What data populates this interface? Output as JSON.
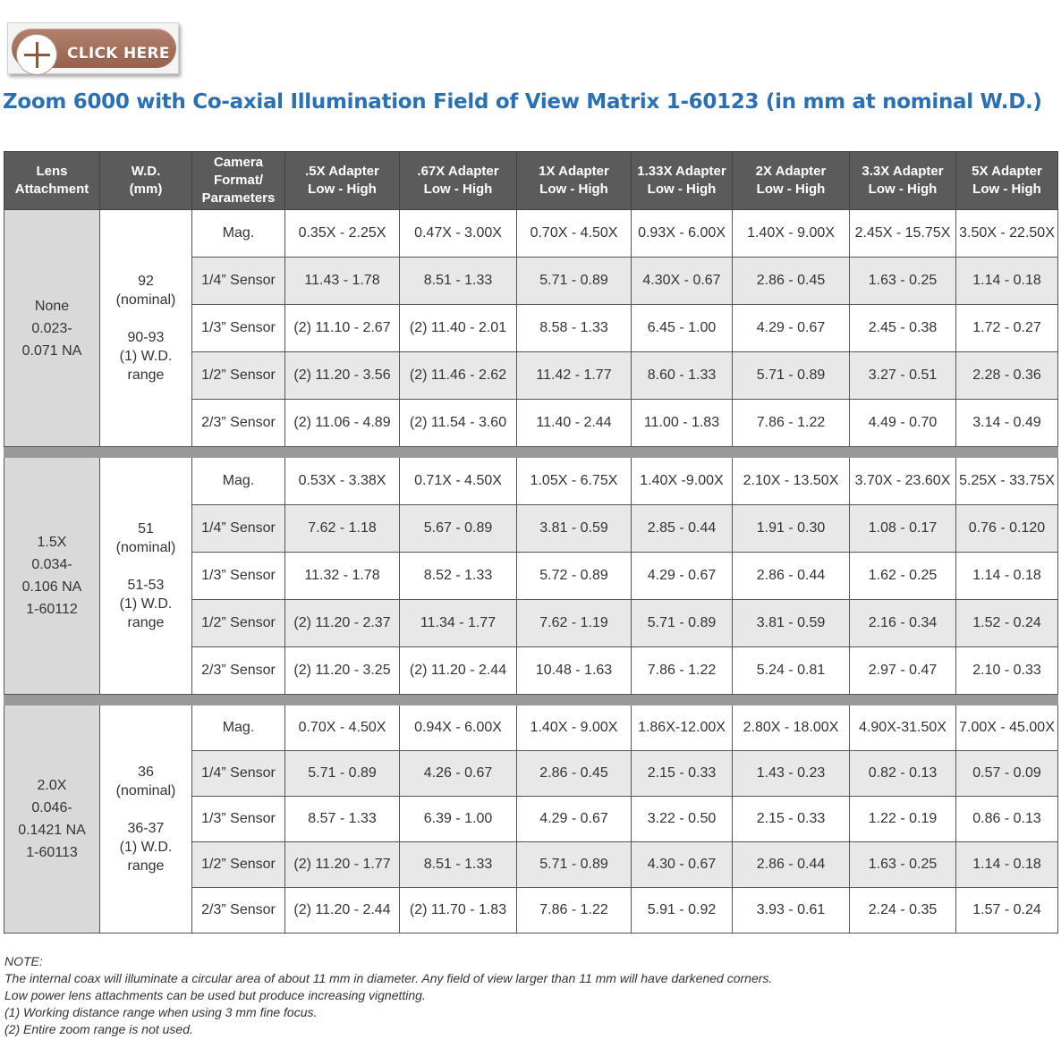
{
  "button": {
    "label": "CLICK HERE",
    "icon": "plus-icon",
    "color": "#a06c57"
  },
  "title": "Zoom 6000 with Co-axial Illumination Field of View Matrix 1-60123 (in mm at nominal W.D.)",
  "table": {
    "headers": {
      "lens": [
        "Lens",
        "Attachment"
      ],
      "wd": [
        "W.D.",
        "(mm)"
      ],
      "camera": [
        "Camera",
        "Format/",
        "Parameters"
      ],
      "adapters": [
        [
          ".5X Adapter",
          "Low - High"
        ],
        [
          ".67X Adapter",
          "Low - High"
        ],
        [
          "1X Adapter",
          "Low - High"
        ],
        [
          "1.33X Adapter",
          "Low - High"
        ],
        [
          "2X Adapter",
          "Low - High"
        ],
        [
          "3.3X Adapter",
          "Low - High"
        ],
        [
          "5X Adapter",
          "Low - High"
        ]
      ]
    },
    "groups": [
      {
        "lens": [
          "None",
          "0.023-",
          "0.071 NA"
        ],
        "wd": [
          "92",
          "(nominal)",
          "",
          "90-93",
          "(1) W.D.",
          "range"
        ],
        "rows": [
          {
            "param": "Mag.",
            "values": [
              "0.35X - 2.25X",
              "0.47X - 3.00X",
              "0.70X - 4.50X",
              "0.93X - 6.00X",
              "1.40X - 9.00X",
              "2.45X - 15.75X",
              "3.50X - 22.50X"
            ]
          },
          {
            "param": "1/4” Sensor",
            "values": [
              "11.43 - 1.78",
              "8.51 - 1.33",
              "5.71 - 0.89",
              "4.30X - 0.67",
              "2.86 - 0.45",
              "1.63 - 0.25",
              "1.14 - 0.18"
            ]
          },
          {
            "param": "1/3” Sensor",
            "values": [
              "(2) 11.10 - 2.67",
              "(2) 11.40 - 2.01",
              "8.58 - 1.33",
              "6.45 - 1.00",
              "4.29 - 0.67",
              "2.45 - 0.38",
              "1.72 - 0.27"
            ]
          },
          {
            "param": "1/2” Sensor",
            "values": [
              "(2) 11.20 - 3.56",
              "(2) 11.46 - 2.62",
              "11.42 - 1.77",
              "8.60 - 1.33",
              "5.71 - 0.89",
              "3.27 - 0.51",
              "2.28 - 0.36"
            ]
          },
          {
            "param": "2/3” Sensor",
            "values": [
              "(2) 11.06 - 4.89",
              "(2) 11.54 - 3.60",
              "11.40 - 2.44",
              "11.00 - 1.83",
              "7.86 - 1.22",
              "4.49 - 0.70",
              "3.14 - 0.49"
            ]
          }
        ]
      },
      {
        "lens": [
          "1.5X",
          "0.034-",
          "0.106 NA",
          "1-60112"
        ],
        "wd": [
          "51",
          "(nominal)",
          "",
          "51-53",
          "(1) W.D.",
          "range"
        ],
        "rows": [
          {
            "param": "Mag.",
            "values": [
              "0.53X - 3.38X",
              "0.71X - 4.50X",
              "1.05X - 6.75X",
              "1.40X -9.00X",
              "2.10X - 13.50X",
              "3.70X - 23.60X",
              "5.25X - 33.75X"
            ]
          },
          {
            "param": "1/4” Sensor",
            "values": [
              "7.62 - 1.18",
              "5.67 - 0.89",
              "3.81 - 0.59",
              "2.85 - 0.44",
              "1.91 - 0.30",
              "1.08 - 0.17",
              "0.76 - 0.120"
            ]
          },
          {
            "param": "1/3” Sensor",
            "values": [
              "11.32 - 1.78",
              "8.52 - 1.33",
              "5.72 - 0.89",
              "4.29 - 0.67",
              "2.86 - 0.44",
              "1.62 - 0.25",
              "1.14 - 0.18"
            ]
          },
          {
            "param": "1/2” Sensor",
            "values": [
              "(2) 11.20 - 2.37",
              "11.34 - 1.77",
              "7.62 - 1.19",
              "5.71 - 0.89",
              "3.81 - 0.59",
              "2.16 - 0.34",
              "1.52 - 0.24"
            ]
          },
          {
            "param": "2/3” Sensor",
            "values": [
              "(2) 11.20 - 3.25",
              "(2) 11.20 - 2.44",
              "10.48 - 1.63",
              "7.86 - 1.22",
              "5.24 - 0.81",
              "2.97 - 0.47",
              "2.10 - 0.33"
            ]
          }
        ]
      },
      {
        "lens": [
          "2.0X",
          "0.046-",
          "0.1421 NA",
          "1-60113"
        ],
        "wd": [
          "36",
          "(nominal)",
          "",
          "36-37",
          "(1) W.D.",
          "range"
        ],
        "rows": [
          {
            "param": "Mag.",
            "values": [
              "0.70X - 4.50X",
              "0.94X - 6.00X",
              "1.40X - 9.00X",
              "1.86X-12.00X",
              "2.80X - 18.00X",
              "4.90X-31.50X",
              "7.00X - 45.00X"
            ]
          },
          {
            "param": "1/4” Sensor",
            "values": [
              "5.71 - 0.89",
              "4.26 - 0.67",
              "2.86 - 0.45",
              "2.15 - 0.33",
              "1.43 - 0.23",
              "0.82 - 0.13",
              "0.57 - 0.09"
            ]
          },
          {
            "param": "1/3” Sensor",
            "values": [
              "8.57 - 1.33",
              "6.39 - 1.00",
              "4.29 - 0.67",
              "3.22 - 0.50",
              "2.15 - 0.33",
              "1.22 - 0.19",
              "0.86 - 0.13"
            ]
          },
          {
            "param": "1/2” Sensor",
            "values": [
              "(2) 11.20 - 1.77",
              "8.51 - 1.33",
              "5.71 - 0.89",
              "4.30 - 0.67",
              "2.86 - 0.44",
              "1.63 - 0.25",
              "1.14 - 0.18"
            ]
          },
          {
            "param": "2/3” Sensor",
            "values": [
              "(2) 11.20 - 2.44",
              "(2) 11.70 - 1.83",
              "7.86 - 1.22",
              "5.91 - 0.92",
              "3.93 - 0.61",
              "2.24 - 0.35",
              "1.57 - 0.24"
            ]
          }
        ]
      }
    ]
  },
  "notes": [
    "NOTE:",
    "The internal coax will illuminate a circular area of about 11 mm in diameter.  Any field of view larger than 11 mm will have darkened corners.",
    "Low power lens attachments can be used but produce increasing vignetting.",
    "(1) Working distance range when using 3 mm fine focus.",
    "(2) Entire zoom range is not used."
  ]
}
